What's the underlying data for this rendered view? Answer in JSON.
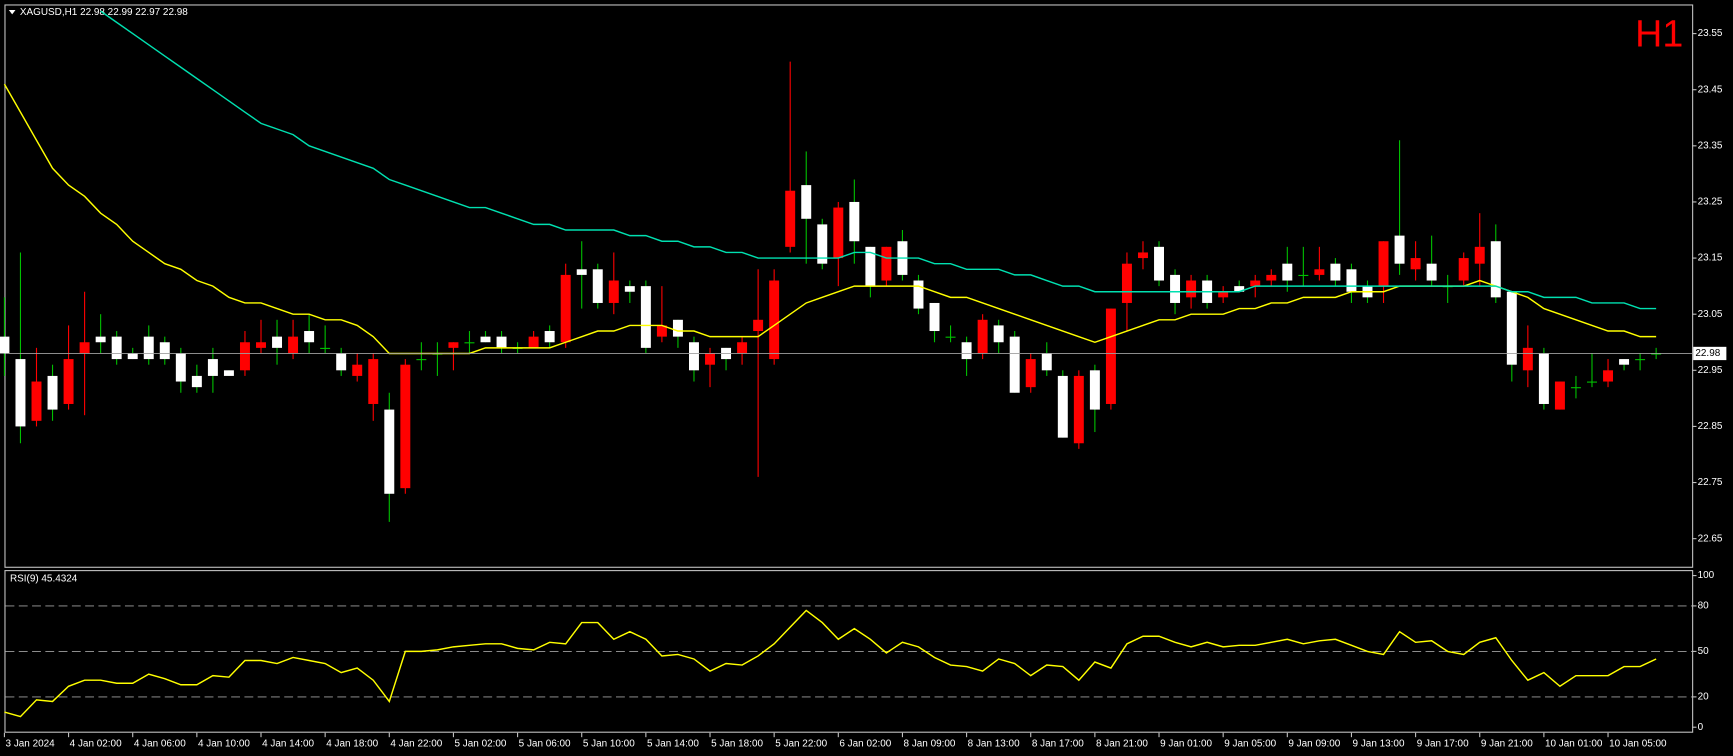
{
  "chart_data": [
    {
      "type": "candlestick",
      "title": "XAGUSD,H1  22.98 22.99 22.97 22.98",
      "timeframe": "H1",
      "categories": [
        "3 Jan 2024",
        null,
        null,
        null,
        "4 Jan 02:00",
        null,
        null,
        null,
        "4 Jan 06:00",
        null,
        null,
        null,
        "4 Jan 10:00",
        null,
        null,
        null,
        "4 Jan 14:00",
        null,
        null,
        null,
        "4 Jan 18:00",
        null,
        null,
        null,
        "4 Jan 22:00",
        null,
        null,
        null,
        "5 Jan 02:00",
        null,
        null,
        null,
        "5 Jan 06:00",
        null,
        null,
        null,
        "5 Jan 10:00",
        null,
        null,
        null,
        "5 Jan 14:00",
        null,
        null,
        null,
        "5 Jan 18:00",
        null,
        null,
        null,
        "5 Jan 22:00",
        null,
        null,
        null,
        "6 Jan 02:00",
        null,
        null,
        null,
        "8 Jan 09:00",
        null,
        null,
        null,
        "8 Jan 13:00",
        null,
        null,
        null,
        "8 Jan 17:00",
        null,
        null,
        null,
        "8 Jan 21:00",
        null,
        null,
        null,
        "9 Jan 01:00",
        null,
        null,
        null,
        "9 Jan 05:00",
        null,
        null,
        null,
        "9 Jan 09:00",
        null,
        null,
        null,
        "9 Jan 13:00",
        null,
        null,
        null,
        "9 Jan 17:00",
        null,
        null,
        null,
        "9 Jan 21:00",
        null,
        null,
        null,
        "10 Jan 01:00",
        null,
        null,
        null,
        "10 Jan 05:00",
        null,
        null,
        null
      ],
      "open": [
        22.98,
        22.85,
        22.93,
        22.88,
        22.97,
        23.0,
        23.0,
        22.97,
        22.97,
        22.97,
        22.97,
        22.93,
        22.92,
        22.94,
        22.94,
        23.0,
        23.0,
        22.99,
        23.01,
        23.0,
        22.99,
        22.95,
        22.96,
        22.97,
        22.73,
        22.96,
        22.97,
        22.98,
        23.0,
        23.0,
        23.0,
        22.99,
        22.99,
        23.01,
        23.0,
        23.12,
        23.12,
        23.07,
        23.11,
        23.09,
        22.99,
        23.03,
        23.01,
        22.95,
        22.98,
        22.97,
        23.0,
        23.04,
        23.11,
        23.27,
        23.22,
        23.14,
        23.24,
        23.18,
        23.1,
        23.17,
        23.12,
        23.06,
        23.02,
        23.01,
        22.97,
        23.04,
        23.0,
        22.91,
        22.97,
        22.95,
        22.83,
        22.94,
        22.88,
        23.06,
        23.14,
        23.16,
        23.11,
        23.07,
        23.11,
        23.07,
        23.09,
        23.09,
        23.11,
        23.12,
        23.11,
        23.12,
        23.13,
        23.11,
        23.09,
        23.08,
        23.18,
        23.14,
        23.15,
        23.11,
        23.1,
        23.15,
        23.17,
        23.08,
        22.96,
        22.99,
        22.89,
        22.93,
        22.92,
        22.93,
        22.95,
        22.96,
        22.97,
        22.98
      ],
      "high": [
        23.08,
        23.16,
        22.99,
        22.96,
        23.03,
        23.09,
        23.05,
        23.02,
        22.99,
        23.03,
        23.01,
        22.99,
        22.96,
        22.99,
        22.95,
        23.02,
        23.04,
        23.04,
        23.04,
        23.05,
        23.03,
        22.99,
        22.98,
        22.98,
        22.91,
        22.97,
        23.0,
        23.0,
        23.0,
        23.02,
        23.02,
        23.02,
        23.0,
        23.02,
        23.03,
        23.14,
        23.18,
        23.14,
        23.16,
        23.11,
        23.11,
        23.1,
        23.04,
        23.01,
        22.99,
        22.99,
        23.01,
        23.13,
        23.13,
        23.5,
        23.34,
        23.22,
        23.25,
        23.29,
        23.17,
        23.17,
        23.2,
        23.12,
        23.07,
        23.03,
        23.01,
        23.05,
        23.04,
        23.02,
        22.98,
        23.0,
        22.95,
        22.95,
        22.96,
        23.06,
        23.16,
        23.18,
        23.18,
        23.13,
        23.12,
        23.12,
        23.1,
        23.11,
        23.12,
        23.13,
        23.17,
        23.17,
        23.17,
        23.15,
        23.14,
        23.11,
        23.18,
        23.36,
        23.18,
        23.19,
        23.12,
        23.16,
        23.23,
        23.21,
        23.09,
        23.03,
        22.99,
        22.93,
        22.94,
        22.98,
        22.97,
        22.97,
        22.98,
        22.99
      ],
      "low": [
        22.94,
        22.82,
        22.85,
        22.86,
        22.88,
        22.87,
        22.98,
        22.96,
        22.97,
        22.96,
        22.96,
        22.91,
        22.91,
        22.91,
        22.94,
        22.94,
        22.98,
        22.96,
        22.97,
        22.98,
        22.98,
        22.94,
        22.93,
        22.86,
        22.68,
        22.73,
        22.95,
        22.94,
        22.95,
        22.98,
        23.0,
        22.98,
        22.98,
        22.99,
        22.99,
        22.99,
        23.06,
        23.06,
        23.05,
        23.07,
        22.98,
        23.0,
        22.99,
        22.93,
        22.92,
        22.95,
        22.96,
        22.76,
        22.96,
        23.16,
        23.14,
        23.13,
        23.1,
        23.14,
        23.08,
        23.1,
        23.11,
        23.05,
        23.0,
        23.0,
        22.94,
        22.97,
        22.98,
        22.91,
        22.91,
        22.94,
        22.83,
        22.81,
        22.84,
        22.88,
        23.02,
        23.13,
        23.1,
        23.05,
        23.06,
        23.06,
        23.07,
        23.09,
        23.08,
        23.1,
        23.09,
        23.1,
        23.11,
        23.1,
        23.07,
        23.07,
        23.07,
        23.12,
        23.11,
        23.1,
        23.07,
        23.1,
        23.1,
        23.07,
        22.93,
        22.92,
        22.88,
        22.88,
        22.9,
        22.92,
        22.92,
        22.95,
        22.95,
        22.97
      ],
      "close": [
        23.01,
        22.97,
        22.86,
        22.94,
        22.89,
        22.98,
        23.01,
        23.01,
        22.98,
        23.01,
        23.0,
        22.98,
        22.94,
        22.97,
        22.95,
        22.95,
        22.99,
        23.01,
        22.98,
        23.02,
        22.99,
        22.98,
        22.94,
        22.89,
        22.88,
        22.74,
        22.97,
        22.98,
        22.99,
        23.0,
        23.01,
        23.01,
        22.99,
        22.99,
        23.02,
        23.0,
        23.13,
        23.13,
        23.07,
        23.1,
        23.1,
        23.01,
        23.04,
        23.0,
        22.96,
        22.99,
        22.98,
        23.02,
        22.97,
        23.17,
        23.28,
        23.21,
        23.15,
        23.25,
        23.17,
        23.11,
        23.18,
        23.11,
        23.07,
        23.01,
        23.0,
        22.98,
        23.03,
        23.01,
        22.92,
        22.98,
        22.94,
        22.82,
        22.95,
        22.89,
        23.07,
        23.15,
        23.17,
        23.12,
        23.08,
        23.11,
        23.08,
        23.1,
        23.1,
        23.11,
        23.14,
        23.12,
        23.12,
        23.14,
        23.13,
        23.1,
        23.1,
        23.19,
        23.13,
        23.14,
        23.1,
        23.11,
        23.14,
        23.18,
        23.09,
        22.95,
        22.98,
        22.88,
        22.92,
        22.93,
        22.93,
        22.97,
        22.97,
        22.98
      ],
      "bull_color": "#ffffff",
      "bear_color": "#ff0000",
      "doji_color": "#00c000",
      "lines": [
        {
          "color": "#ffff00",
          "values": [
            23.46,
            23.41,
            23.36,
            23.31,
            23.28,
            23.26,
            23.23,
            23.21,
            23.18,
            23.16,
            23.14,
            23.13,
            23.11,
            23.1,
            23.08,
            23.07,
            23.07,
            23.06,
            23.05,
            23.05,
            23.04,
            23.04,
            23.03,
            23.01,
            22.98,
            22.98,
            22.98,
            22.98,
            22.98,
            22.98,
            22.99,
            22.99,
            22.99,
            22.99,
            22.99,
            23.0,
            23.01,
            23.02,
            23.02,
            23.03,
            23.03,
            23.03,
            23.02,
            23.02,
            23.01,
            23.01,
            23.01,
            23.01,
            23.03,
            23.05,
            23.07,
            23.08,
            23.09,
            23.1,
            23.1,
            23.1,
            23.1,
            23.1,
            23.09,
            23.08,
            23.08,
            23.07,
            23.06,
            23.05,
            23.04,
            23.03,
            23.02,
            23.01,
            23.0,
            23.01,
            23.02,
            23.03,
            23.04,
            23.04,
            23.05,
            23.05,
            23.05,
            23.06,
            23.06,
            23.07,
            23.07,
            23.08,
            23.08,
            23.08,
            23.09,
            23.09,
            23.09,
            23.1,
            23.1,
            23.1,
            23.1,
            23.1,
            23.11,
            23.1,
            23.09,
            23.08,
            23.06,
            23.05,
            23.04,
            23.03,
            23.02,
            23.02,
            23.01,
            23.01
          ]
        },
        {
          "color": "#00e0b0",
          "values": [
            null,
            null,
            null,
            null,
            null,
            null,
            23.59,
            23.57,
            23.55,
            23.53,
            23.51,
            23.49,
            23.47,
            23.45,
            23.43,
            23.41,
            23.39,
            23.38,
            23.37,
            23.35,
            23.34,
            23.33,
            23.32,
            23.31,
            23.29,
            23.28,
            23.27,
            23.26,
            23.25,
            23.24,
            23.24,
            23.23,
            23.22,
            23.21,
            23.21,
            23.2,
            23.2,
            23.2,
            23.2,
            23.19,
            23.19,
            23.18,
            23.18,
            23.17,
            23.17,
            23.16,
            23.16,
            23.15,
            23.15,
            23.15,
            23.15,
            23.15,
            23.15,
            23.16,
            23.16,
            23.15,
            23.15,
            23.15,
            23.14,
            23.14,
            23.13,
            23.13,
            23.13,
            23.12,
            23.12,
            23.11,
            23.1,
            23.1,
            23.09,
            23.09,
            23.09,
            23.09,
            23.09,
            23.09,
            23.09,
            23.09,
            23.09,
            23.09,
            23.1,
            23.1,
            23.1,
            23.1,
            23.1,
            23.1,
            23.1,
            23.1,
            23.1,
            23.1,
            23.1,
            23.1,
            23.1,
            23.1,
            23.1,
            23.1,
            23.09,
            23.09,
            23.08,
            23.08,
            23.08,
            23.07,
            23.07,
            23.07,
            23.06,
            23.06
          ]
        }
      ],
      "current_price": 22.98,
      "ylim": [
        22.6,
        23.6
      ],
      "yticks": [
        22.65,
        22.75,
        22.85,
        22.95,
        23.05,
        23.15,
        23.25,
        23.35,
        23.45,
        23.55
      ]
    },
    {
      "type": "line",
      "title": "RSI(9) 45.4324",
      "color": "#ffff00",
      "values": [
        10,
        7,
        18,
        17,
        27,
        31,
        31,
        29,
        29,
        35,
        32,
        28,
        28,
        34,
        33,
        44,
        44,
        42,
        46,
        44,
        42,
        36,
        39,
        31,
        17,
        50,
        50,
        51,
        53,
        54,
        55,
        55,
        52,
        51,
        56,
        55,
        69,
        69,
        58,
        63,
        58,
        47,
        48,
        45,
        37,
        42,
        41,
        47,
        55,
        66,
        77,
        69,
        58,
        65,
        58,
        49,
        56,
        53,
        46,
        41,
        40,
        37,
        45,
        42,
        34,
        41,
        40,
        31,
        43,
        39,
        55,
        60,
        60,
        56,
        53,
        56,
        53,
        54,
        54,
        56,
        58,
        55,
        57,
        58,
        54,
        50,
        48,
        63,
        56,
        57,
        50,
        48,
        56,
        59,
        44,
        31,
        36,
        27,
        34,
        34,
        34,
        40,
        40,
        45
      ],
      "levels": [
        20,
        50,
        80
      ],
      "ylim": [
        0,
        100
      ],
      "yticks": [
        0,
        20,
        50,
        80,
        100
      ]
    }
  ]
}
